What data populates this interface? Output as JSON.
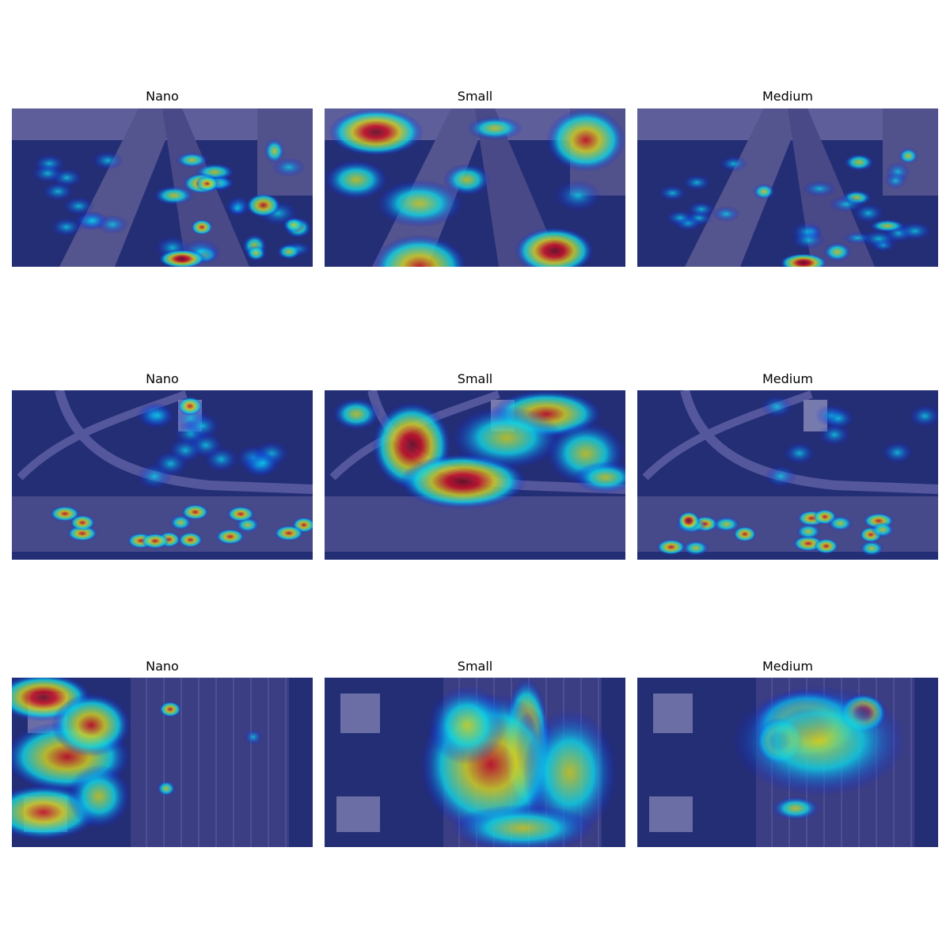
{
  "figure": {
    "rows": [
      {
        "scene": "street-oblique",
        "panels": [
          {
            "title": "Nano"
          },
          {
            "title": "Small"
          },
          {
            "title": "Medium"
          }
        ]
      },
      {
        "scene": "interchange-aerial",
        "panels": [
          {
            "title": "Nano"
          },
          {
            "title": "Small"
          },
          {
            "title": "Medium"
          }
        ]
      },
      {
        "scene": "highway-topdown",
        "panels": [
          {
            "title": "Nano"
          },
          {
            "title": "Small"
          },
          {
            "title": "Medium"
          }
        ]
      }
    ]
  },
  "colors": {
    "colormap": [
      "#00007f",
      "#0000ff",
      "#00ffff",
      "#ffff00",
      "#ff0000",
      "#7f0000"
    ],
    "base_overlay": "#3a3a8c"
  }
}
